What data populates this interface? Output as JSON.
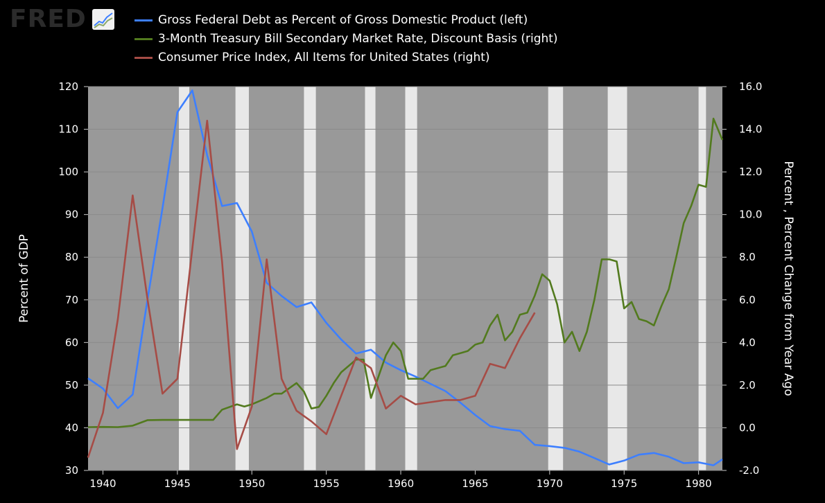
{
  "logo": {
    "text": "FRED",
    "icon": "trend-chart-icon"
  },
  "colors": {
    "debt": "#3d7fff",
    "tbill": "#527a1e",
    "cpi": "#a64c46",
    "plot_bg": "#999999",
    "recession": "#e8e8e8"
  },
  "chart_data": {
    "type": "line",
    "xlim": [
      1939,
      1981.6
    ],
    "recessions": [
      [
        1945.1,
        1945.8
      ],
      [
        1948.9,
        1949.8
      ],
      [
        1953.5,
        1954.3
      ],
      [
        1957.6,
        1958.3
      ],
      [
        1960.3,
        1961.1
      ],
      [
        1969.9,
        1970.9
      ],
      [
        1973.9,
        1975.2
      ],
      [
        1980.0,
        1980.5
      ]
    ],
    "x_ticks": [
      "1940",
      "1945",
      "1950",
      "1955",
      "1960",
      "1965",
      "1970",
      "1975",
      "1980"
    ],
    "y_left": {
      "label": "Percent of GDP",
      "range": [
        30,
        120
      ],
      "ticks": [
        "30",
        "40",
        "50",
        "60",
        "70",
        "80",
        "90",
        "100",
        "110",
        "120"
      ]
    },
    "y_right": {
      "label": "Percent , Percent Change from Year Ago",
      "range": [
        -2.0,
        16.0
      ],
      "ticks": [
        "-2.0",
        "0.0",
        "2.0",
        "4.0",
        "6.0",
        "8.0",
        "10.0",
        "12.0",
        "14.0",
        "16.0"
      ]
    },
    "series": [
      {
        "name": "Gross Federal Debt as Percent of Gross Domestic Product (left)",
        "axis": "left",
        "color": "#3d7fff",
        "x": [
          1939,
          1940,
          1941,
          1942,
          1943,
          1944,
          1945,
          1946,
          1947,
          1948,
          1949,
          1950,
          1951,
          1952,
          1953,
          1954,
          1955,
          1956,
          1957,
          1958,
          1959,
          1960,
          1961,
          1962,
          1963,
          1964,
          1965,
          1966,
          1967,
          1968,
          1969,
          1970,
          1971,
          1972,
          1973,
          1974,
          1975,
          1976,
          1977,
          1978,
          1979,
          1980,
          1981,
          1981.6
        ],
        "values": [
          51.6,
          49.2,
          44.6,
          47.8,
          70.2,
          91.5,
          114.0,
          119.1,
          103.9,
          92.0,
          92.7,
          86.0,
          74.0,
          70.9,
          68.3,
          69.4,
          64.6,
          60.7,
          57.4,
          58.3,
          55.3,
          53.5,
          52.0,
          50.3,
          48.6,
          45.9,
          43.0,
          40.4,
          39.7,
          39.3,
          36.0,
          35.7,
          35.3,
          34.4,
          32.9,
          31.4,
          32.3,
          33.7,
          34.1,
          33.2,
          31.7,
          31.9,
          31.2,
          32.6
        ]
      },
      {
        "name": "3-Month Treasury Bill Secondary Market Rate, Discount Basis (right)",
        "axis": "right",
        "color": "#527a1e",
        "x": [
          1939,
          1940,
          1941,
          1942,
          1943,
          1944,
          1945,
          1946,
          1947,
          1947.4,
          1948,
          1949,
          1949.5,
          1950,
          1951,
          1951.5,
          1952,
          1953,
          1953.5,
          1954,
          1954.5,
          1955,
          1955.5,
          1956,
          1957,
          1957.5,
          1958,
          1959,
          1959.5,
          1960,
          1960.5,
          1961,
          1961.5,
          1962,
          1963,
          1963.5,
          1964,
          1964.5,
          1965,
          1965.5,
          1966,
          1966.5,
          1967,
          1967.5,
          1968,
          1968.5,
          1969,
          1969.5,
          1970,
          1970.5,
          1971,
          1971.5,
          1972,
          1972.5,
          1973,
          1973.5,
          1974,
          1974.5,
          1975,
          1975.5,
          1976,
          1976.5,
          1977,
          1977.5,
          1978,
          1978.5,
          1979,
          1979.5,
          1980,
          1980.5,
          1981,
          1981.6
        ],
        "values": [
          0.03,
          0.04,
          0.03,
          0.1,
          0.36,
          0.37,
          0.37,
          0.37,
          0.37,
          0.37,
          0.85,
          1.1,
          1.0,
          1.1,
          1.4,
          1.6,
          1.6,
          2.1,
          1.7,
          0.9,
          0.98,
          1.5,
          2.1,
          2.6,
          3.2,
          3.2,
          1.4,
          3.4,
          4.0,
          3.6,
          2.3,
          2.3,
          2.3,
          2.7,
          2.9,
          3.4,
          3.5,
          3.6,
          3.9,
          4.0,
          4.8,
          5.3,
          4.1,
          4.5,
          5.3,
          5.4,
          6.2,
          7.2,
          6.9,
          5.8,
          4.0,
          4.5,
          3.6,
          4.5,
          6.0,
          7.9,
          7.9,
          7.8,
          5.6,
          5.9,
          5.1,
          5.0,
          4.8,
          5.7,
          6.5,
          8.0,
          9.6,
          10.4,
          11.4,
          11.3,
          14.5,
          13.5
        ]
      },
      {
        "name": "Consumer Price Index, All Items for United States (right)",
        "axis": "right",
        "color": "#a64c46",
        "x": [
          1939,
          1940,
          1941,
          1942,
          1943,
          1944,
          1945,
          1946,
          1947,
          1948,
          1949,
          1950,
          1951,
          1952,
          1953,
          1954,
          1955,
          1956,
          1957,
          1958,
          1959,
          1960,
          1961,
          1962,
          1963,
          1964,
          1965,
          1966,
          1967,
          1968,
          1969
        ],
        "values": [
          -1.4,
          0.7,
          5.1,
          10.9,
          6.0,
          1.6,
          2.3,
          8.4,
          14.4,
          7.8,
          -1.0,
          1.0,
          7.9,
          2.3,
          0.8,
          0.3,
          -0.3,
          1.5,
          3.3,
          2.8,
          0.9,
          1.5,
          1.1,
          1.2,
          1.3,
          1.3,
          1.5,
          3.0,
          2.8,
          4.2,
          5.4
        ]
      }
    ]
  }
}
